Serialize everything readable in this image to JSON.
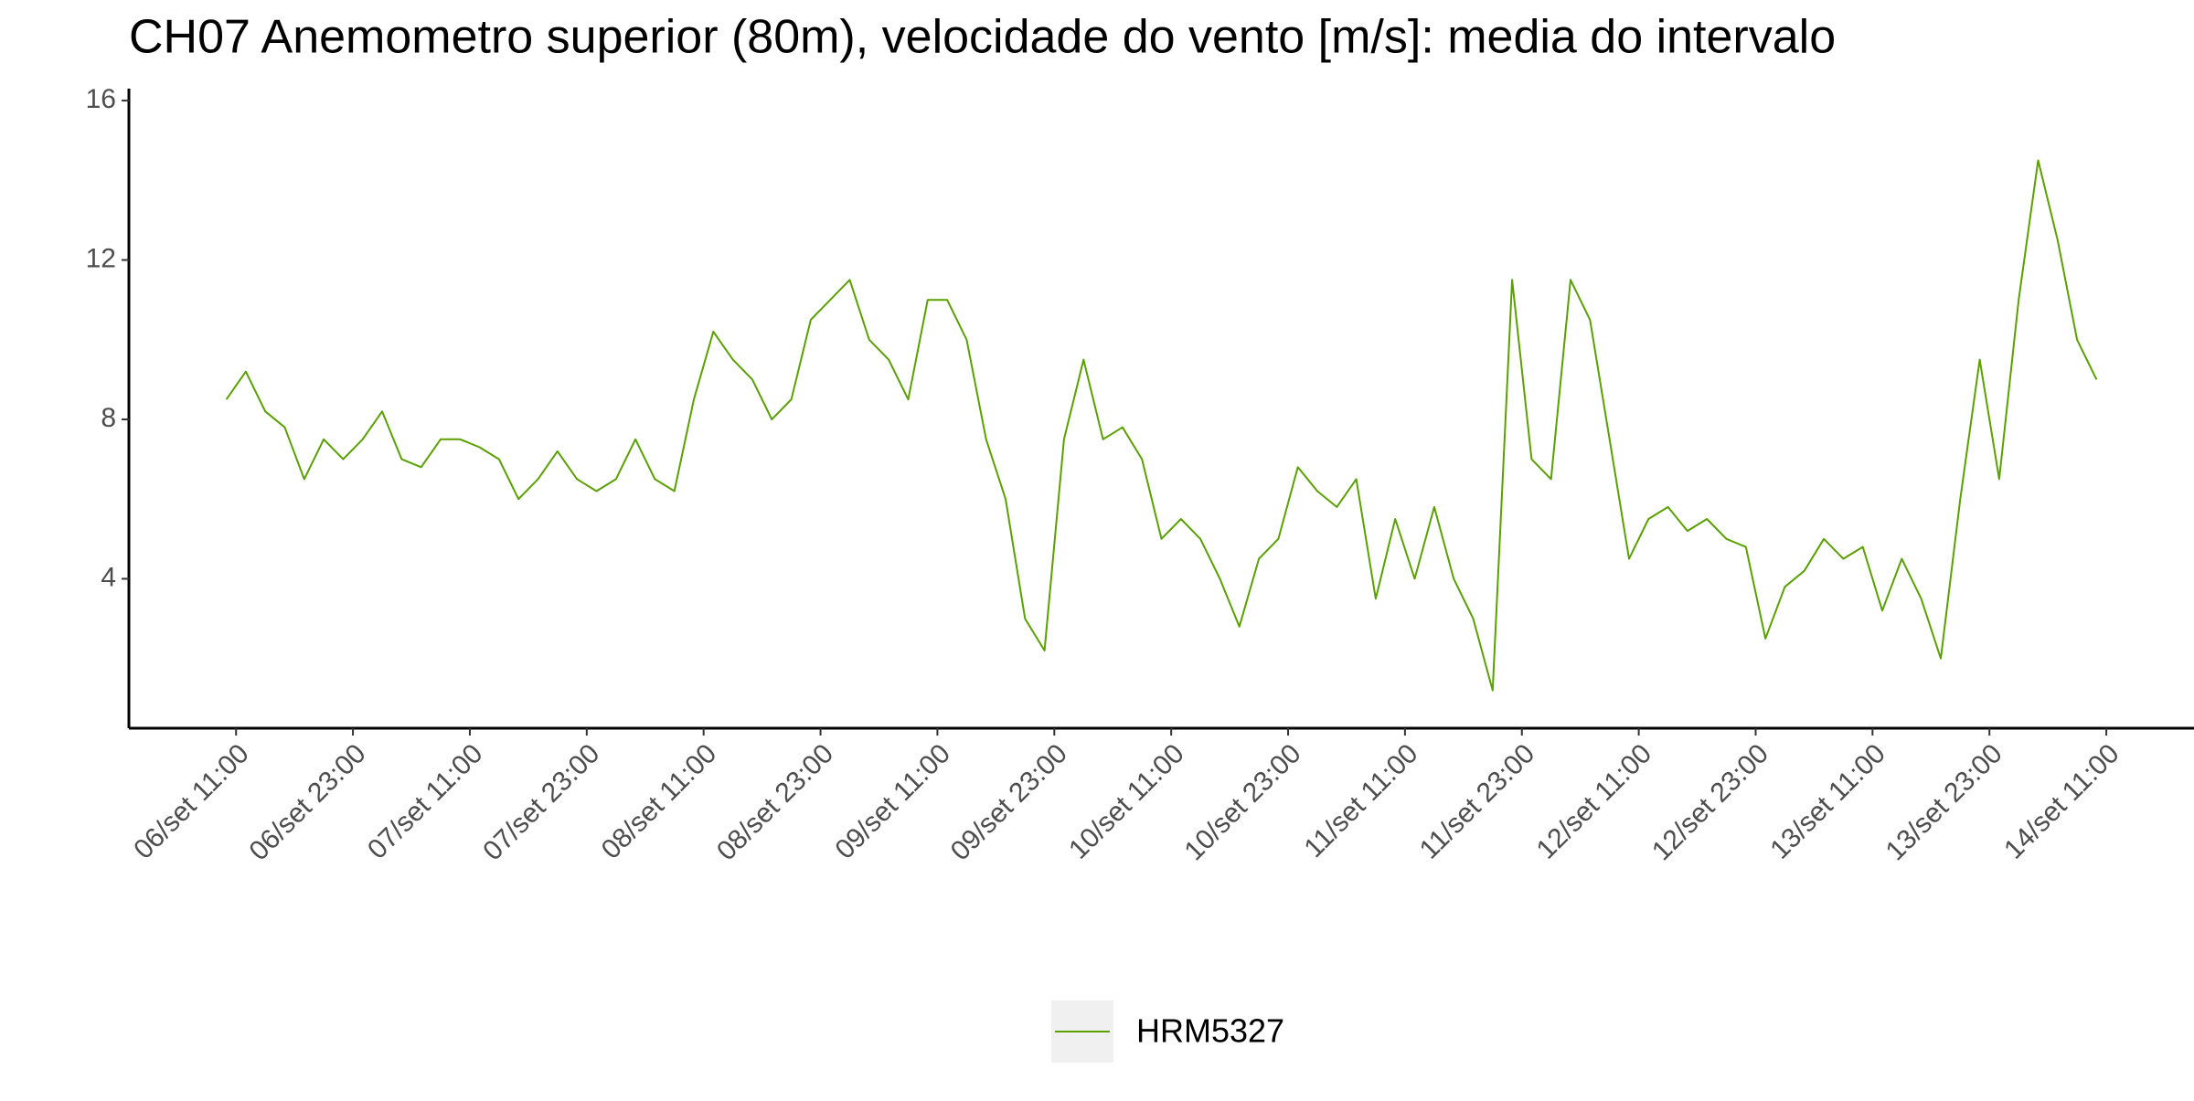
{
  "chart_data": {
    "type": "line",
    "title": "CH07 Anemometro superior (80m), velocidade do vento [m/s]: media do intervalo",
    "x": [
      "06/set 10:00",
      "06/set 12:00",
      "06/set 14:00",
      "06/set 16:00",
      "06/set 18:00",
      "06/set 20:00",
      "06/set 22:00",
      "07/set 00:00",
      "07/set 02:00",
      "07/set 04:00",
      "07/set 06:00",
      "07/set 08:00",
      "07/set 10:00",
      "07/set 12:00",
      "07/set 14:00",
      "07/set 16:00",
      "07/set 18:00",
      "07/set 20:00",
      "07/set 22:00",
      "08/set 00:00",
      "08/set 02:00",
      "08/set 04:00",
      "08/set 06:00",
      "08/set 08:00",
      "08/set 10:00",
      "08/set 12:00",
      "08/set 14:00",
      "08/set 16:00",
      "08/set 18:00",
      "08/set 20:00",
      "08/set 22:00",
      "09/set 00:00",
      "09/set 02:00",
      "09/set 04:00",
      "09/set 06:00",
      "09/set 08:00",
      "09/set 10:00",
      "09/set 12:00",
      "09/set 14:00",
      "09/set 16:00",
      "09/set 18:00",
      "09/set 20:00",
      "09/set 22:00",
      "10/set 00:00",
      "10/set 02:00",
      "10/set 04:00",
      "10/set 06:00",
      "10/set 08:00",
      "10/set 10:00",
      "10/set 12:00",
      "10/set 14:00",
      "10/set 16:00",
      "10/set 18:00",
      "10/set 20:00",
      "10/set 22:00",
      "11/set 00:00",
      "11/set 02:00",
      "11/set 04:00",
      "11/set 06:00",
      "11/set 08:00",
      "11/set 10:00",
      "11/set 12:00",
      "11/set 14:00",
      "11/set 16:00",
      "11/set 18:00",
      "11/set 20:00",
      "11/set 22:00",
      "12/set 00:00",
      "12/set 02:00",
      "12/set 04:00",
      "12/set 06:00",
      "12/set 08:00",
      "12/set 10:00",
      "12/set 12:00",
      "12/set 14:00",
      "12/set 16:00",
      "12/set 18:00",
      "12/set 20:00",
      "12/set 22:00",
      "13/set 00:00",
      "13/set 02:00",
      "13/set 04:00",
      "13/set 06:00",
      "13/set 08:00",
      "13/set 10:00",
      "13/set 12:00",
      "13/set 14:00",
      "13/set 16:00",
      "13/set 18:00",
      "13/set 20:00",
      "13/set 22:00",
      "14/set 00:00",
      "14/set 02:00",
      "14/set 04:00",
      "14/set 06:00",
      "14/set 08:00",
      "14/set 10:00"
    ],
    "series": [
      {
        "name": "HRM5327",
        "color": "#5aa000",
        "values": [
          8.5,
          9.2,
          8.2,
          7.8,
          6.5,
          7.5,
          7.0,
          7.5,
          8.2,
          7.0,
          6.8,
          7.5,
          7.5,
          7.3,
          7.0,
          6.0,
          6.5,
          7.2,
          6.5,
          6.2,
          6.5,
          7.5,
          6.5,
          6.2,
          8.5,
          10.2,
          9.5,
          9.0,
          8.0,
          8.5,
          10.5,
          11.0,
          11.5,
          10.0,
          9.5,
          8.5,
          11.0,
          11.0,
          10.0,
          7.5,
          6.0,
          3.0,
          2.2,
          7.5,
          9.5,
          7.5,
          7.8,
          7.0,
          5.0,
          5.5,
          5.0,
          4.0,
          2.8,
          4.5,
          5.0,
          6.8,
          6.2,
          5.8,
          6.5,
          3.5,
          5.5,
          4.0,
          5.8,
          4.0,
          3.0,
          1.2,
          11.5,
          7.0,
          6.5,
          11.5,
          10.5,
          7.5,
          4.5,
          5.5,
          5.8,
          5.2,
          5.5,
          5.0,
          4.8,
          2.5,
          3.8,
          4.2,
          5.0,
          4.5,
          4.8,
          3.2,
          4.5,
          3.5,
          2.0,
          6.0,
          9.5,
          6.5,
          11.0,
          14.5,
          12.5,
          10.0,
          9.0
        ]
      }
    ],
    "xlim": [
      "06/set 00:00",
      "14/set 20:00"
    ],
    "xticks": [
      "06/set 11:00",
      "06/set 23:00",
      "07/set 11:00",
      "07/set 23:00",
      "08/set 11:00",
      "08/set 23:00",
      "09/set 11:00",
      "09/set 23:00",
      "10/set 11:00",
      "10/set 23:00",
      "11/set 11:00",
      "11/set 23:00",
      "12/set 11:00",
      "12/set 23:00",
      "13/set 11:00",
      "13/set 23:00",
      "14/set 11:00"
    ],
    "ylim": [
      0.25,
      16.3
    ],
    "yticks": [
      4,
      8,
      12,
      16
    ],
    "legend": "bottom"
  }
}
